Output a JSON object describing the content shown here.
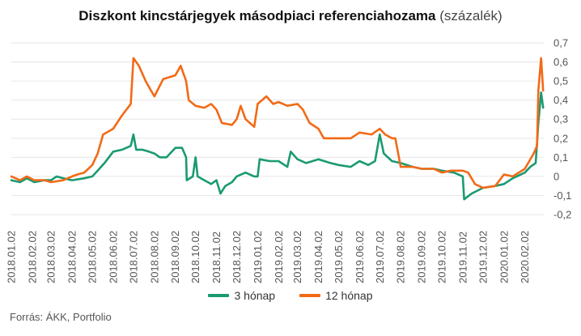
{
  "title": {
    "main": "Diszkont kincstárjegyek másodpiaci referenciahozama",
    "unit": "(százalék)"
  },
  "source": "Forrás: ÁKK, Portfolio",
  "colors": {
    "series_3m": "#1a9a72",
    "series_12m": "#f26a16",
    "grid": "#e6e6e6"
  },
  "chart_data": {
    "type": "line",
    "title": "Diszkont kincstárjegyek másodpiaci referenciahozama (százalék)",
    "xlabel": "",
    "ylabel": "",
    "x_range": [
      "2018-01-02",
      "2020-03-01"
    ],
    "ylim": [
      -0.2,
      0.7
    ],
    "y_ticks": [
      "0,7",
      "0,6",
      "0,5",
      "0,4",
      "0,3",
      "0,2",
      "0,1",
      "0",
      "-0,1",
      "-0,2"
    ],
    "x_ticks": [
      "2018.01.02",
      "2018.02.02",
      "2018.03.02",
      "2018.04.02",
      "2018.05.02",
      "2018.06.02",
      "2018.07.02",
      "2018.08.02",
      "2018.09.02",
      "2018.10.02",
      "2018.11.02",
      "2018.12.02",
      "2019.01.02",
      "2019.02.02",
      "2019.03.02",
      "2019.04.02",
      "2019.05.02",
      "2019.06.02",
      "2019.07.02",
      "2019.08.02",
      "2019.09.02",
      "2019.10.02",
      "2019.11.02",
      "2019.12.02",
      "2020.01.02",
      "2020.02.02"
    ],
    "grid": true,
    "legend_position": "bottom",
    "series": [
      {
        "name": "3 hónap",
        "points": [
          [
            "2018-01-02",
            -0.02
          ],
          [
            "2018-01-15",
            -0.03
          ],
          [
            "2018-01-25",
            -0.01
          ],
          [
            "2018-02-05",
            -0.03
          ],
          [
            "2018-02-20",
            -0.02
          ],
          [
            "2018-03-02",
            -0.02
          ],
          [
            "2018-03-10",
            0.0
          ],
          [
            "2018-03-20",
            -0.01
          ],
          [
            "2018-04-02",
            -0.02
          ],
          [
            "2018-04-20",
            -0.01
          ],
          [
            "2018-05-02",
            0.0
          ],
          [
            "2018-05-10",
            0.03
          ],
          [
            "2018-05-20",
            0.07
          ],
          [
            "2018-06-02",
            0.13
          ],
          [
            "2018-06-15",
            0.14
          ],
          [
            "2018-06-28",
            0.16
          ],
          [
            "2018-07-02",
            0.22
          ],
          [
            "2018-07-06",
            0.14
          ],
          [
            "2018-07-15",
            0.14
          ],
          [
            "2018-07-25",
            0.13
          ],
          [
            "2018-08-02",
            0.12
          ],
          [
            "2018-08-10",
            0.1
          ],
          [
            "2018-08-20",
            0.1
          ],
          [
            "2018-09-02",
            0.15
          ],
          [
            "2018-09-12",
            0.15
          ],
          [
            "2018-09-18",
            0.1
          ],
          [
            "2018-09-19",
            -0.02
          ],
          [
            "2018-09-28",
            0.0
          ],
          [
            "2018-10-02",
            0.1
          ],
          [
            "2018-10-05",
            0.0
          ],
          [
            "2018-10-15",
            -0.02
          ],
          [
            "2018-10-25",
            -0.04
          ],
          [
            "2018-11-02",
            -0.02
          ],
          [
            "2018-11-08",
            -0.09
          ],
          [
            "2018-11-15",
            -0.05
          ],
          [
            "2018-11-25",
            -0.03
          ],
          [
            "2018-12-02",
            0.0
          ],
          [
            "2018-12-15",
            0.02
          ],
          [
            "2018-12-28",
            0.0
          ],
          [
            "2019-01-02",
            0.0
          ],
          [
            "2019-01-05",
            0.09
          ],
          [
            "2019-01-20",
            0.08
          ],
          [
            "2019-02-02",
            0.08
          ],
          [
            "2019-02-15",
            0.05
          ],
          [
            "2019-02-20",
            0.13
          ],
          [
            "2019-03-02",
            0.09
          ],
          [
            "2019-03-15",
            0.07
          ],
          [
            "2019-04-02",
            0.09
          ],
          [
            "2019-04-20",
            0.07
          ],
          [
            "2019-05-02",
            0.06
          ],
          [
            "2019-05-20",
            0.05
          ],
          [
            "2019-06-02",
            0.08
          ],
          [
            "2019-06-15",
            0.06
          ],
          [
            "2019-06-25",
            0.08
          ],
          [
            "2019-07-02",
            0.22
          ],
          [
            "2019-07-08",
            0.12
          ],
          [
            "2019-07-20",
            0.08
          ],
          [
            "2019-08-02",
            0.07
          ],
          [
            "2019-08-20",
            0.05
          ],
          [
            "2019-09-02",
            0.04
          ],
          [
            "2019-09-20",
            0.04
          ],
          [
            "2019-10-02",
            0.03
          ],
          [
            "2019-10-20",
            0.02
          ],
          [
            "2019-11-02",
            0.0
          ],
          [
            "2019-11-04",
            -0.12
          ],
          [
            "2019-11-15",
            -0.09
          ],
          [
            "2019-12-02",
            -0.06
          ],
          [
            "2019-12-20",
            -0.05
          ],
          [
            "2020-01-02",
            -0.04
          ],
          [
            "2020-01-15",
            -0.01
          ],
          [
            "2020-02-02",
            0.02
          ],
          [
            "2020-02-10",
            0.05
          ],
          [
            "2020-02-18",
            0.07
          ],
          [
            "2020-02-22",
            0.28
          ],
          [
            "2020-02-26",
            0.44
          ],
          [
            "2020-02-29",
            0.36
          ]
        ]
      },
      {
        "name": "12 hónap",
        "points": [
          [
            "2018-01-02",
            0.0
          ],
          [
            "2018-01-15",
            -0.02
          ],
          [
            "2018-01-25",
            0.0
          ],
          [
            "2018-02-05",
            -0.02
          ],
          [
            "2018-02-20",
            -0.02
          ],
          [
            "2018-03-02",
            -0.03
          ],
          [
            "2018-03-20",
            -0.02
          ],
          [
            "2018-04-02",
            0.0
          ],
          [
            "2018-04-10",
            0.01
          ],
          [
            "2018-04-20",
            0.02
          ],
          [
            "2018-05-02",
            0.06
          ],
          [
            "2018-05-10",
            0.12
          ],
          [
            "2018-05-18",
            0.22
          ],
          [
            "2018-06-02",
            0.25
          ],
          [
            "2018-06-15",
            0.32
          ],
          [
            "2018-06-28",
            0.38
          ],
          [
            "2018-07-02",
            0.62
          ],
          [
            "2018-07-10",
            0.58
          ],
          [
            "2018-07-20",
            0.5
          ],
          [
            "2018-07-28",
            0.45
          ],
          [
            "2018-08-02",
            0.42
          ],
          [
            "2018-08-15",
            0.51
          ],
          [
            "2018-09-02",
            0.53
          ],
          [
            "2018-09-10",
            0.58
          ],
          [
            "2018-09-18",
            0.5
          ],
          [
            "2018-09-22",
            0.4
          ],
          [
            "2018-10-02",
            0.37
          ],
          [
            "2018-10-15",
            0.36
          ],
          [
            "2018-10-25",
            0.38
          ],
          [
            "2018-11-02",
            0.35
          ],
          [
            "2018-11-10",
            0.28
          ],
          [
            "2018-11-25",
            0.27
          ],
          [
            "2018-12-02",
            0.3
          ],
          [
            "2018-12-08",
            0.37
          ],
          [
            "2018-12-15",
            0.3
          ],
          [
            "2018-12-28",
            0.26
          ],
          [
            "2019-01-02",
            0.38
          ],
          [
            "2019-01-15",
            0.42
          ],
          [
            "2019-01-25",
            0.38
          ],
          [
            "2019-02-02",
            0.39
          ],
          [
            "2019-02-15",
            0.37
          ],
          [
            "2019-03-02",
            0.38
          ],
          [
            "2019-03-10",
            0.35
          ],
          [
            "2019-03-20",
            0.28
          ],
          [
            "2019-04-02",
            0.25
          ],
          [
            "2019-04-10",
            0.2
          ],
          [
            "2019-05-02",
            0.2
          ],
          [
            "2019-05-20",
            0.2
          ],
          [
            "2019-06-02",
            0.23
          ],
          [
            "2019-06-20",
            0.22
          ],
          [
            "2019-07-02",
            0.25
          ],
          [
            "2019-07-10",
            0.22
          ],
          [
            "2019-07-20",
            0.2
          ],
          [
            "2019-07-25",
            0.2
          ],
          [
            "2019-08-02",
            0.05
          ],
          [
            "2019-08-20",
            0.05
          ],
          [
            "2019-09-02",
            0.04
          ],
          [
            "2019-09-20",
            0.04
          ],
          [
            "2019-10-02",
            0.02
          ],
          [
            "2019-10-15",
            0.03
          ],
          [
            "2019-11-02",
            0.03
          ],
          [
            "2019-11-10",
            0.02
          ],
          [
            "2019-11-20",
            -0.04
          ],
          [
            "2019-12-02",
            -0.06
          ],
          [
            "2019-12-20",
            -0.05
          ],
          [
            "2020-01-02",
            0.01
          ],
          [
            "2020-01-15",
            0.0
          ],
          [
            "2020-02-02",
            0.04
          ],
          [
            "2020-02-15",
            0.12
          ],
          [
            "2020-02-20",
            0.16
          ],
          [
            "2020-02-22",
            0.45
          ],
          [
            "2020-02-26",
            0.62
          ],
          [
            "2020-02-29",
            0.45
          ]
        ]
      }
    ]
  }
}
